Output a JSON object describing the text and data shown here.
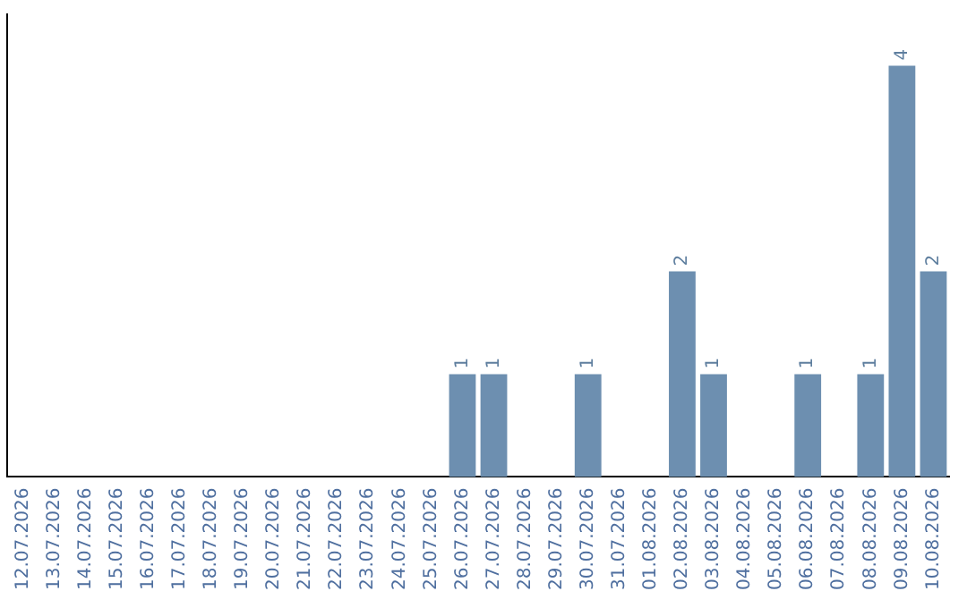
{
  "chart_data": {
    "type": "bar",
    "categories": [
      "12.07.2026",
      "13.07.2026",
      "14.07.2026",
      "15.07.2026",
      "16.07.2026",
      "17.07.2026",
      "18.07.2026",
      "19.07.2026",
      "20.07.2026",
      "21.07.2026",
      "22.07.2026",
      "23.07.2026",
      "24.07.2026",
      "25.07.2026",
      "26.07.2026",
      "27.07.2026",
      "28.07.2026",
      "29.07.2026",
      "30.07.2026",
      "31.07.2026",
      "01.08.2026",
      "02.08.2026",
      "03.08.2026",
      "04.08.2026",
      "05.08.2026",
      "06.08.2026",
      "07.08.2026",
      "08.08.2026",
      "09.08.2026",
      "10.08.2026"
    ],
    "values": [
      null,
      null,
      null,
      null,
      null,
      null,
      null,
      null,
      null,
      null,
      null,
      null,
      null,
      null,
      1,
      1,
      null,
      null,
      1,
      null,
      null,
      2,
      1,
      null,
      null,
      1,
      null,
      1,
      4,
      2
    ],
    "value_labels": [
      null,
      null,
      null,
      null,
      null,
      null,
      null,
      null,
      null,
      null,
      null,
      null,
      null,
      null,
      "1",
      "1",
      null,
      null,
      "1",
      null,
      null,
      "2",
      "1",
      null,
      null,
      "1",
      null,
      "1",
      "4",
      "2"
    ],
    "color": "#6d8fb0",
    "grid": false,
    "legend": false,
    "tick_labels": "x"
  }
}
